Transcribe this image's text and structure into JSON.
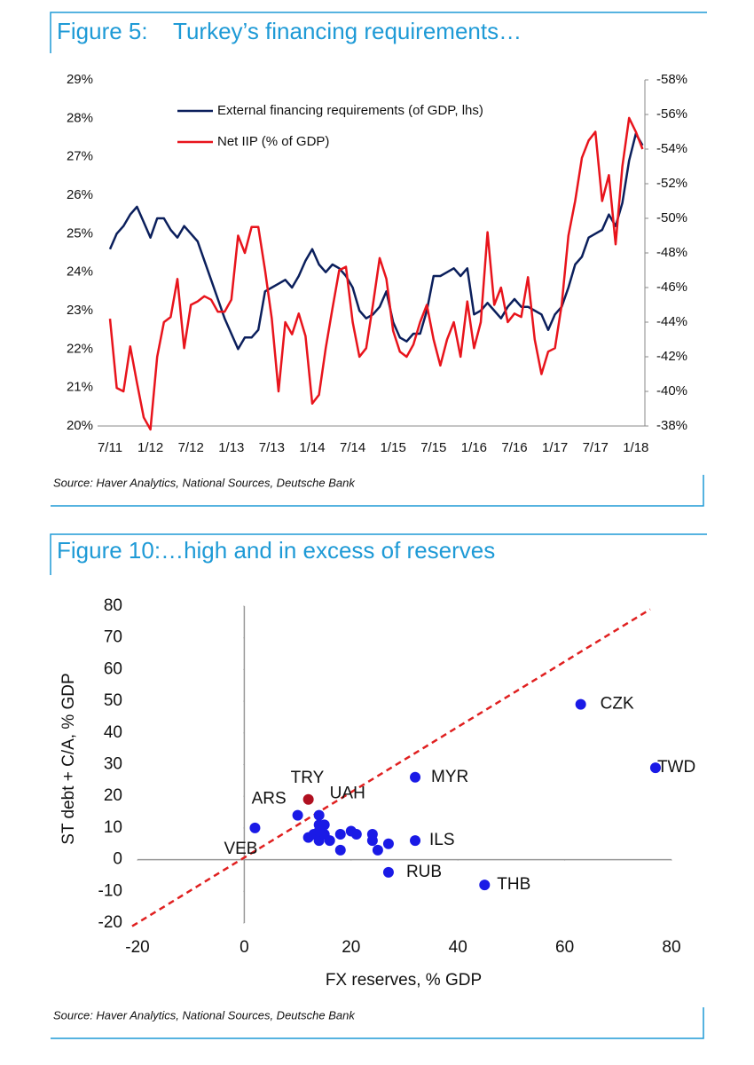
{
  "chart_data": [
    {
      "type": "line",
      "title": "Figure 5:    Turkey’s financing requirements…",
      "note": "Source: Haver Analytics, National Sources, Deutsche Bank",
      "categories": [
        "7/11",
        null,
        null,
        null,
        null,
        null,
        "1/12",
        null,
        null,
        null,
        null,
        null,
        "7/12",
        null,
        null,
        null,
        null,
        null,
        "1/13",
        null,
        null,
        null,
        null,
        null,
        "7/13",
        null,
        null,
        null,
        null,
        null,
        "1/14",
        null,
        null,
        null,
        null,
        null,
        "7/14",
        null,
        null,
        null,
        null,
        null,
        "1/15",
        null,
        null,
        null,
        null,
        null,
        "7/15",
        null,
        null,
        null,
        null,
        null,
        "1/16",
        null,
        null,
        null,
        null,
        null,
        "7/16",
        null,
        null,
        null,
        null,
        null,
        "1/17",
        null,
        null,
        null,
        null,
        null,
        "7/17",
        null,
        null,
        null,
        null,
        null,
        "1/18",
        null
      ],
      "series": [
        {
          "name": "External financing requirements (of GDP, lhs)",
          "color": "#0b1f5c",
          "axis": "y",
          "values": [
            24.6,
            25.0,
            25.2,
            25.5,
            25.7,
            25.3,
            24.9,
            25.4,
            25.4,
            25.1,
            24.9,
            25.2,
            25.0,
            24.8,
            24.3,
            23.8,
            23.3,
            22.8,
            22.4,
            22.0,
            22.3,
            22.3,
            22.5,
            23.5,
            23.6,
            23.7,
            23.8,
            23.6,
            23.9,
            24.3,
            24.6,
            24.2,
            24.0,
            24.2,
            24.1,
            23.9,
            23.6,
            23.0,
            22.8,
            22.9,
            23.1,
            23.5,
            22.7,
            22.3,
            22.2,
            22.4,
            22.4,
            23.0,
            23.9,
            23.9,
            24.0,
            24.1,
            23.9,
            24.1,
            22.9,
            23.0,
            23.2,
            23.0,
            22.8,
            23.1,
            23.3,
            23.1,
            23.1,
            23.0,
            22.9,
            22.5,
            22.9,
            23.1,
            23.6,
            24.2,
            24.4,
            24.9,
            25.0,
            25.1,
            25.5,
            25.2,
            25.8,
            26.9,
            27.6,
            27.3
          ]
        },
        {
          "name": "Net IIP (% of GDP)",
          "color": "#e8141c",
          "axis": "y2",
          "values": [
            -44.2,
            -40.2,
            -40.0,
            -42.6,
            -40.5,
            -38.5,
            -37.8,
            -42.0,
            -44.0,
            -44.3,
            -46.5,
            -42.5,
            -45.0,
            -45.2,
            -45.5,
            -45.3,
            -44.6,
            -44.6,
            -45.3,
            -49.0,
            -48.0,
            -49.5,
            -49.5,
            -47.0,
            -44.2,
            -40.0,
            -44.0,
            -43.3,
            -44.5,
            -43.2,
            -39.3,
            -39.8,
            -42.5,
            -44.8,
            -47.0,
            -47.2,
            -44.0,
            -42.0,
            -42.5,
            -45.0,
            -47.7,
            -46.5,
            -43.5,
            -42.3,
            -42.0,
            -42.7,
            -44.0,
            -45.0,
            -43.0,
            -41.5,
            -43.0,
            -44.0,
            -42.0,
            -45.2,
            -42.5,
            -44.0,
            -49.2,
            -45.0,
            -46.0,
            -44.0,
            -44.5,
            -44.3,
            -46.6,
            -43.0,
            -41.0,
            -42.3,
            -42.5,
            -45.0,
            -49.0,
            -51.0,
            -53.5,
            -54.5,
            -55.0,
            -51.0,
            -52.5,
            -48.5,
            -53.0,
            -55.8,
            -55.0,
            -54.0
          ]
        }
      ],
      "ylim": [
        20,
        29
      ],
      "yticks": [
        {
          "value": 20,
          "label": "20%"
        },
        {
          "value": 21,
          "label": "21%"
        },
        {
          "value": 22,
          "label": "22%"
        },
        {
          "value": 23,
          "label": "23%"
        },
        {
          "value": 24,
          "label": "24%"
        },
        {
          "value": 25,
          "label": "25%"
        },
        {
          "value": 26,
          "label": "26%"
        },
        {
          "value": 27,
          "label": "27%"
        },
        {
          "value": 28,
          "label": "28%"
        },
        {
          "value": 29,
          "label": "29%"
        }
      ],
      "y2lim": [
        -38,
        -58
      ],
      "y2ticks": [
        {
          "value": -38,
          "label": "-38%"
        },
        {
          "value": -40,
          "label": "-40%"
        },
        {
          "value": -42,
          "label": "-42%"
        },
        {
          "value": -44,
          "label": "-44%"
        },
        {
          "value": -46,
          "label": "-46%"
        },
        {
          "value": -48,
          "label": "-48%"
        },
        {
          "value": -50,
          "label": "-50%"
        },
        {
          "value": -52,
          "label": "-52%"
        },
        {
          "value": -54,
          "label": "-54%"
        },
        {
          "value": -56,
          "label": "-56%"
        },
        {
          "value": -58,
          "label": "-58%"
        }
      ],
      "legend": "top-left"
    },
    {
      "type": "scatter",
      "title": "Figure 10:…high and in excess of reserves",
      "note": "Source: Haver Analytics, National Sources, Deutsche Bank",
      "x_label": "FX reserves, % GDP",
      "y_label": "ST debt + C/A, % GDP",
      "x": [
        10,
        2,
        12,
        14,
        32,
        63,
        77,
        32,
        27,
        45,
        14,
        15,
        12,
        13,
        14,
        15,
        16,
        18,
        18,
        20,
        21,
        24,
        24,
        25,
        27,
        14
      ],
      "y": [
        14,
        10,
        19,
        14,
        26,
        49,
        29,
        6,
        -4,
        -8,
        11,
        11,
        7,
        8,
        6,
        8,
        6,
        8,
        3,
        9,
        8,
        6,
        8,
        3,
        5,
        9
      ],
      "point_labels": [
        "ARS",
        "VEB",
        "TRY",
        "UAH",
        "MYR",
        "CZK",
        "TWD",
        "ILS",
        "RUB",
        "THB",
        null,
        null,
        null,
        null,
        null,
        null,
        null,
        null,
        null,
        null,
        null,
        null,
        null,
        null,
        null,
        null
      ],
      "point_colors": [
        "#1a1ae6",
        "#1a1ae6",
        "#b01020",
        "#1a1ae6",
        "#1a1ae6",
        "#1a1ae6",
        "#1a1ae6",
        "#1a1ae6",
        "#1a1ae6",
        "#1a1ae6",
        "#1a1ae6",
        "#1a1ae6",
        "#1a1ae6",
        "#1a1ae6",
        "#1a1ae6",
        "#1a1ae6",
        "#1a1ae6",
        "#1a1ae6",
        "#1a1ae6",
        "#1a1ae6",
        "#1a1ae6",
        "#1a1ae6",
        "#1a1ae6",
        "#1a1ae6",
        "#1a1ae6",
        "#1a1ae6"
      ],
      "reference_line": {
        "x": [
          -21,
          76
        ],
        "y": [
          -21,
          79
        ],
        "color": "#e02020"
      },
      "xlim": [
        -20,
        80
      ],
      "xticks": [
        -20,
        0,
        20,
        40,
        60,
        80
      ],
      "ylim": [
        -20,
        80
      ],
      "yticks": [
        -20,
        -10,
        0,
        10,
        20,
        30,
        40,
        50,
        60,
        70,
        80
      ]
    }
  ]
}
